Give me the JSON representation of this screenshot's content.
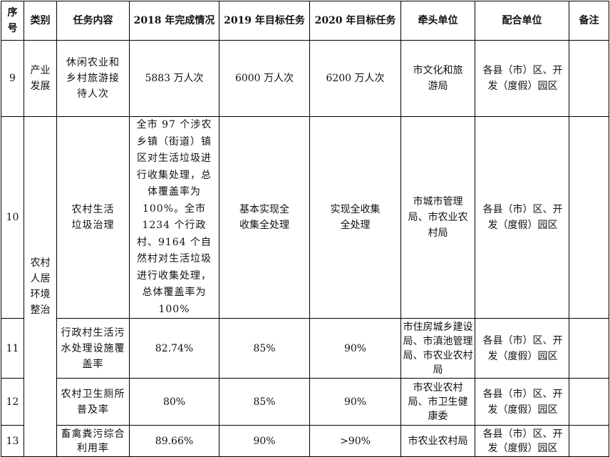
{
  "headers": {
    "no": "序号",
    "category": "类别",
    "task": "任务内容",
    "done_2018": "2018 年完成情况",
    "target_2019": "2019 年目标任务",
    "target_2020": "2020 年目标任务",
    "lead_unit": "牵头单位",
    "coop_unit": "配合单位",
    "remark": "备注"
  },
  "categories": {
    "industry": "产业发展",
    "rural_env": "农村人居环境整治"
  },
  "rows": [
    {
      "no": "9",
      "task": "休闲农业和乡村旅游接待人次",
      "done_2018": "5883 万人次",
      "target_2019": "6000 万人次",
      "target_2020": "6200 万人次",
      "lead_unit": "市文化和旅游局",
      "coop_unit": "各县（市）区、开发（度假）园区",
      "remark": ""
    },
    {
      "no": "10",
      "task": "农村生活垃圾治理",
      "done_2018": "全市 97 个涉农乡镇（街道）镇区对生活垃圾进行收集处理，总体覆盖率为 100%。全市 1234 个行政村、9164 个自然村对生活垃圾进行收集处理，总体覆盖率为 100%",
      "target_2019": "基本实现全收集全处理",
      "target_2020": "实现全收集全处理",
      "lead_unit": "市城市管理局、市农业农村局",
      "coop_unit": "各县（市）区、开发（度假）园区",
      "remark": ""
    },
    {
      "no": "11",
      "task": "行政村生活污水处理设施覆盖率",
      "done_2018": "82.74%",
      "target_2019": "85%",
      "target_2020": "90%",
      "lead_unit": "市住房城乡建设局、市滇池管理局、市农业农村局",
      "coop_unit": "各县（市）区、开发（度假）园区",
      "remark": ""
    },
    {
      "no": "12",
      "task": "农村卫生厕所普及率",
      "done_2018": "80%",
      "target_2019": "85%",
      "target_2020": "90%",
      "lead_unit": "市农业农村局、市卫生健康委",
      "coop_unit": "各县（市）区、开发（度假）园区",
      "remark": ""
    },
    {
      "no": "13",
      "task": "畜禽粪污综合利用率",
      "done_2018": "89.66%",
      "target_2019": "90%",
      "target_2020": ">90%",
      "lead_unit": "市农业农村局",
      "coop_unit": "各县（市）区、开发（度假）园区",
      "remark": ""
    }
  ]
}
